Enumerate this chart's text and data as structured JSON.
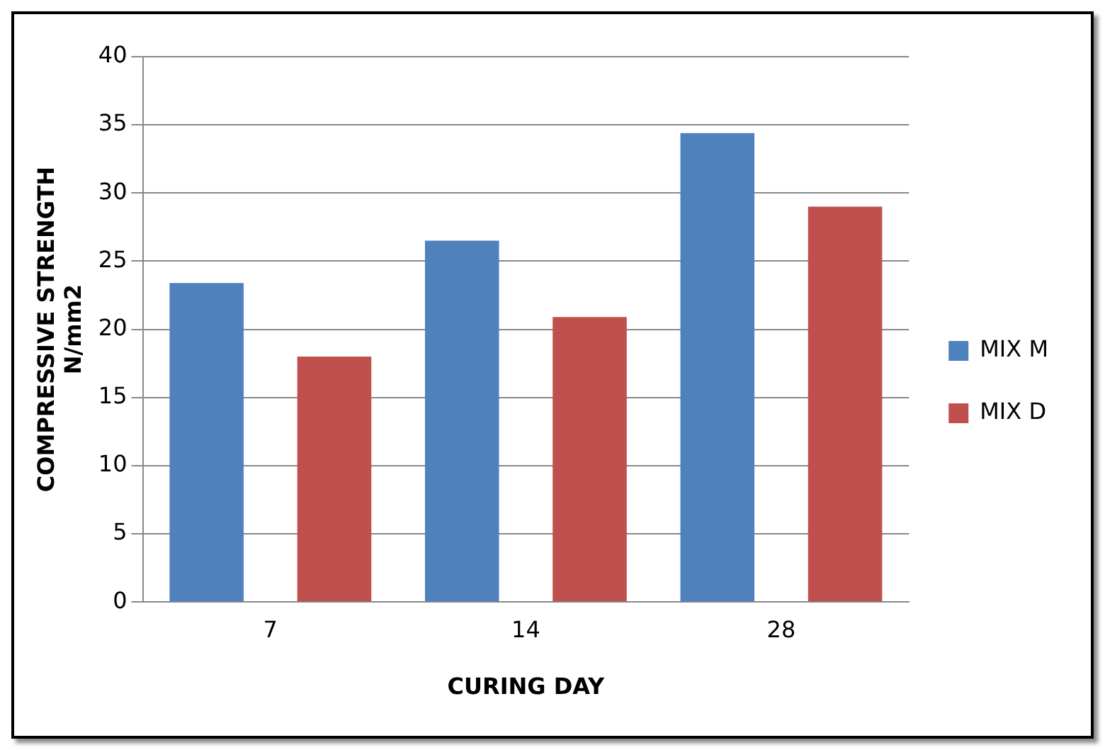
{
  "chart_data": {
    "type": "bar",
    "xlabel": "CURING DAY",
    "ylabel": "COMPRESSIVE STRENGTH\nN/mm2",
    "categories": [
      "7",
      "14",
      "28"
    ],
    "series": [
      {
        "name": "MIX M",
        "color": "#4f81bd",
        "values": [
          23.4,
          26.5,
          34.4
        ]
      },
      {
        "name": "MIX D",
        "color": "#c0504d",
        "values": [
          18,
          20.9,
          29
        ]
      }
    ],
    "ylim": [
      0,
      40
    ],
    "yticks": [
      0,
      5,
      10,
      15,
      20,
      25,
      30,
      35,
      40
    ],
    "grid": "y",
    "legend": "right"
  }
}
